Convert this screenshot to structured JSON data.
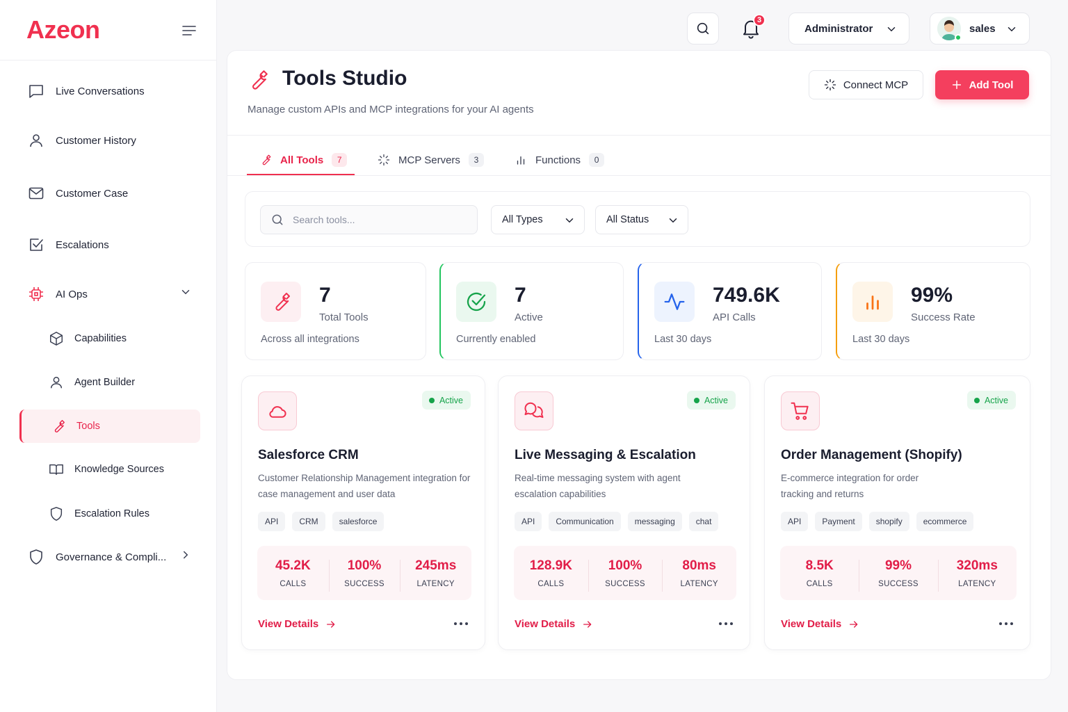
{
  "brand": "Azeon",
  "sidebar": {
    "items": [
      {
        "label": "Live Conversations"
      },
      {
        "label": "Customer History"
      },
      {
        "label": "Customer Case"
      },
      {
        "label": "Escalations"
      },
      {
        "label": "AI Ops"
      },
      {
        "label": "Capabilities"
      },
      {
        "label": "Agent Builder"
      },
      {
        "label": "Tools"
      },
      {
        "label": "Knowledge Sources"
      },
      {
        "label": "Escalation Rules"
      },
      {
        "label": "Governance & Compli..."
      }
    ]
  },
  "topbar": {
    "notification_count": "3",
    "role": "Administrator",
    "user": "sales"
  },
  "page": {
    "title": "Tools Studio",
    "subtitle": "Manage custom APIs and MCP integrations for your AI agents",
    "connect_label": "Connect MCP",
    "add_label": "Add Tool"
  },
  "tabs": [
    {
      "label": "All Tools",
      "count": "7"
    },
    {
      "label": "MCP Servers",
      "count": "3"
    },
    {
      "label": "Functions",
      "count": "0"
    }
  ],
  "filters": {
    "search_placeholder": "Search tools...",
    "type_value": "All Types",
    "status_value": "All Status"
  },
  "stats": [
    {
      "value": "7",
      "label": "Total Tools",
      "note": "Across all integrations"
    },
    {
      "value": "7",
      "label": "Active",
      "note": "Currently enabled"
    },
    {
      "value": "749.6K",
      "label": "API Calls",
      "note": "Last 30 days"
    },
    {
      "value": "99%",
      "label": "Success Rate",
      "note": "Last 30 days"
    }
  ],
  "colors": {
    "accent": "#f0304f",
    "success": "#16a34a",
    "info": "#2563eb",
    "warning": "#f59e0b"
  },
  "tools": [
    {
      "status": "Active",
      "name": "Salesforce CRM",
      "desc1": "Customer Relationship Management integration for",
      "desc2": "case management and user data",
      "tags": [
        "API",
        "CRM",
        "salesforce"
      ],
      "calls": "45.2K",
      "success": "100%",
      "latency": "245ms",
      "calls_label": "CALLS",
      "success_label": "SUCCESS",
      "latency_label": "LATENCY",
      "details_label": "View Details"
    },
    {
      "status": "Active",
      "name": "Live Messaging & Escalation",
      "desc1": "Real-time messaging system with agent",
      "desc2": "escalation capabilities",
      "tags": [
        "API",
        "Communication",
        "messaging",
        "chat"
      ],
      "calls": "128.9K",
      "success": "100%",
      "latency": "80ms",
      "calls_label": "CALLS",
      "success_label": "SUCCESS",
      "latency_label": "LATENCY",
      "details_label": "View Details"
    },
    {
      "status": "Active",
      "name": "Order Management (Shopify)",
      "desc1": "E-commerce integration for order",
      "desc2": "tracking and returns",
      "tags": [
        "API",
        "Payment",
        "shopify",
        "ecommerce"
      ],
      "calls": "8.5K",
      "success": "99%",
      "latency": "320ms",
      "calls_label": "CALLS",
      "success_label": "SUCCESS",
      "latency_label": "LATENCY",
      "details_label": "View Details"
    }
  ]
}
